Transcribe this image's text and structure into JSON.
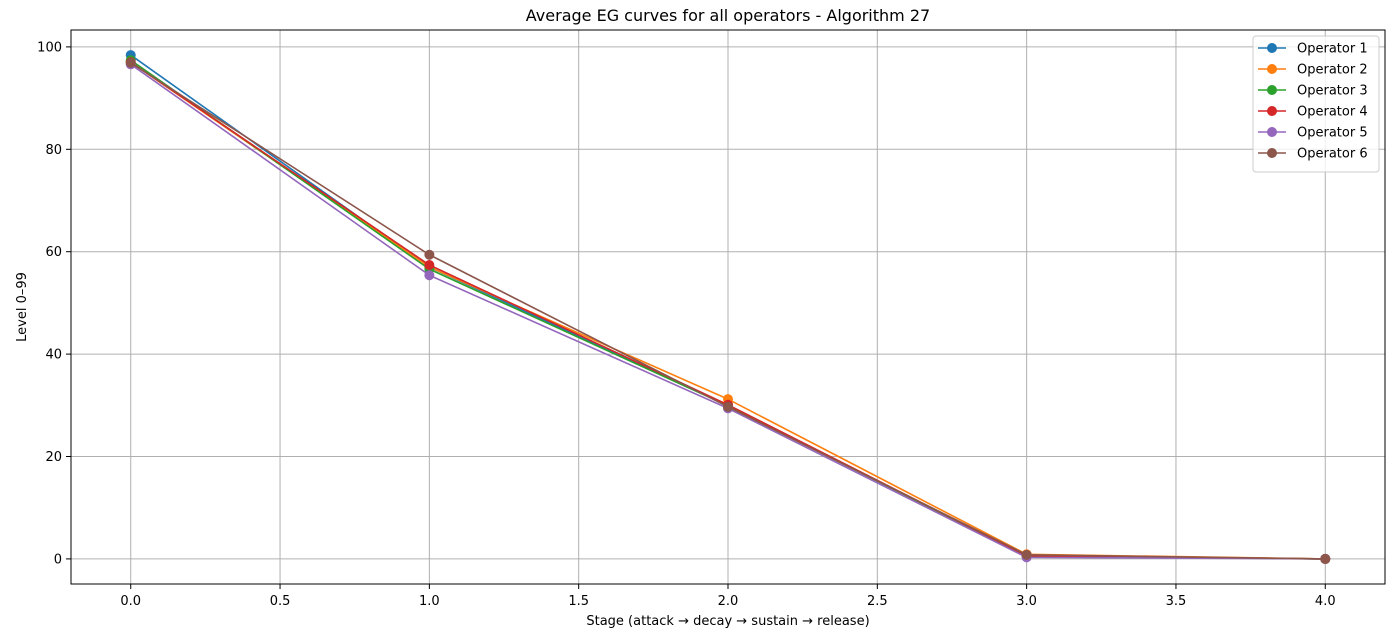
{
  "chart_data": {
    "type": "line",
    "title": "Average EG curves for all operators - Algorithm 27",
    "xlabel": "Stage (attack → decay → sustain → release)",
    "ylabel": "Level 0–99",
    "xlim": [
      -0.2,
      4.2
    ],
    "ylim": [
      -4.9,
      103.3
    ],
    "xticks": [
      0.0,
      0.5,
      1.0,
      1.5,
      2.0,
      2.5,
      3.0,
      3.5,
      4.0
    ],
    "xtick_labels": [
      "0.0",
      "0.5",
      "1.0",
      "1.5",
      "2.0",
      "2.5",
      "3.0",
      "3.5",
      "4.0"
    ],
    "yticks": [
      0,
      20,
      40,
      60,
      80,
      100
    ],
    "ytick_labels": [
      "0",
      "20",
      "40",
      "60",
      "80",
      "100"
    ],
    "grid": true,
    "legend_position": "top-right",
    "x": [
      0,
      1,
      2,
      3,
      4
    ],
    "series": [
      {
        "name": "Operator 1",
        "color": "#1f77b4",
        "values": [
          98.4,
          57.0,
          30.0,
          0.6,
          0.0
        ]
      },
      {
        "name": "Operator 2",
        "color": "#ff7f0e",
        "values": [
          97.0,
          57.0,
          31.2,
          0.9,
          0.0
        ]
      },
      {
        "name": "Operator 3",
        "color": "#2ca02c",
        "values": [
          97.4,
          56.6,
          29.9,
          0.5,
          0.0
        ]
      },
      {
        "name": "Operator 4",
        "color": "#d62728",
        "values": [
          97.0,
          57.4,
          30.1,
          0.6,
          0.0
        ]
      },
      {
        "name": "Operator 5",
        "color": "#9467bd",
        "values": [
          96.6,
          55.4,
          29.4,
          0.3,
          0.0
        ]
      },
      {
        "name": "Operator 6",
        "color": "#8c564b",
        "values": [
          96.9,
          59.4,
          29.7,
          0.8,
          0.0
        ]
      }
    ]
  }
}
